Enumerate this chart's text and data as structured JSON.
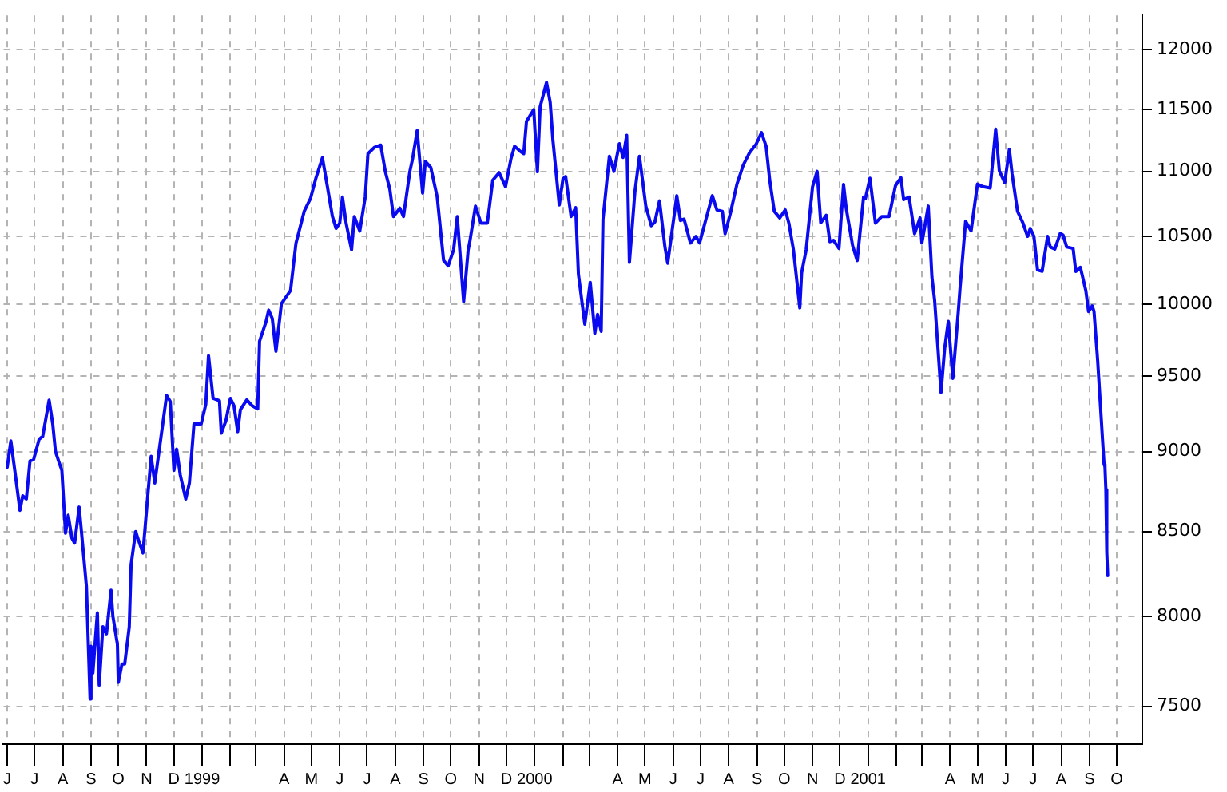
{
  "chart_data": {
    "type": "line",
    "log": true,
    "grid": true,
    "legend": false,
    "marker": "none",
    "line_style": "solid",
    "xlim": [
      "1998-05-28",
      "2001-10-29"
    ],
    "ylim": [
      7300,
      12300
    ],
    "yticks": [
      7500,
      8000,
      8500,
      9000,
      9500,
      10000,
      10500,
      11000,
      11500,
      12000
    ],
    "xticks": [
      {
        "value": "1998-06-01",
        "label": "J"
      },
      {
        "value": "1998-07-01",
        "label": "J"
      },
      {
        "value": "1998-08-01",
        "label": "A"
      },
      {
        "value": "1998-09-01",
        "label": "S"
      },
      {
        "value": "1998-10-01",
        "label": "O"
      },
      {
        "value": "1998-11-01",
        "label": "N"
      },
      {
        "value": "1998-12-01",
        "label": "D"
      },
      {
        "value": "1999-01-01",
        "label": "1999"
      },
      {
        "value": "1999-02-01",
        "label": null
      },
      {
        "value": "1999-03-01",
        "label": null
      },
      {
        "value": "1999-04-01",
        "label": "A"
      },
      {
        "value": "1999-05-01",
        "label": "M"
      },
      {
        "value": "1999-06-01",
        "label": "J"
      },
      {
        "value": "1999-07-01",
        "label": "J"
      },
      {
        "value": "1999-08-01",
        "label": "A"
      },
      {
        "value": "1999-09-01",
        "label": "S"
      },
      {
        "value": "1999-10-01",
        "label": "O"
      },
      {
        "value": "1999-11-01",
        "label": "N"
      },
      {
        "value": "1999-12-01",
        "label": "D"
      },
      {
        "value": "2000-01-01",
        "label": "2000"
      },
      {
        "value": "2000-02-01",
        "label": null
      },
      {
        "value": "2000-03-01",
        "label": null
      },
      {
        "value": "2000-04-01",
        "label": "A"
      },
      {
        "value": "2000-05-01",
        "label": "M"
      },
      {
        "value": "2000-06-01",
        "label": "J"
      },
      {
        "value": "2000-07-01",
        "label": "J"
      },
      {
        "value": "2000-08-01",
        "label": "A"
      },
      {
        "value": "2000-09-01",
        "label": "S"
      },
      {
        "value": "2000-10-01",
        "label": "O"
      },
      {
        "value": "2000-11-01",
        "label": "N"
      },
      {
        "value": "2000-12-01",
        "label": "D"
      },
      {
        "value": "2001-01-01",
        "label": "2001"
      },
      {
        "value": "2001-02-01",
        "label": null
      },
      {
        "value": "2001-03-01",
        "label": null
      },
      {
        "value": "2001-04-01",
        "label": "A"
      },
      {
        "value": "2001-05-01",
        "label": "M"
      },
      {
        "value": "2001-06-01",
        "label": "J"
      },
      {
        "value": "2001-07-01",
        "label": "J"
      },
      {
        "value": "2001-08-01",
        "label": "A"
      },
      {
        "value": "2001-09-01",
        "label": "S"
      },
      {
        "value": "2001-10-01",
        "label": "O"
      }
    ],
    "series": [
      {
        "color": "#0a0af0",
        "x": [
          "1998-06-01",
          "1998-06-05",
          "1998-06-10",
          "1998-06-15",
          "1998-06-18",
          "1998-06-22",
          "1998-06-26",
          "1998-06-30",
          "1998-07-06",
          "1998-07-10",
          "1998-07-17",
          "1998-07-21",
          "1998-07-24",
          "1998-07-28",
          "1998-07-31",
          "1998-08-04",
          "1998-08-07",
          "1998-08-11",
          "1998-08-14",
          "1998-08-19",
          "1998-08-21",
          "1998-08-27",
          "1998-08-31",
          "1998-09-01",
          "1998-09-03",
          "1998-09-08",
          "1998-09-10",
          "1998-09-14",
          "1998-09-18",
          "1998-09-23",
          "1998-09-25",
          "1998-09-30",
          "1998-10-01",
          "1998-10-05",
          "1998-10-08",
          "1998-10-13",
          "1998-10-15",
          "1998-10-20",
          "1998-10-23",
          "1998-10-28",
          "1998-11-02",
          "1998-11-06",
          "1998-11-10",
          "1998-11-13",
          "1998-11-23",
          "1998-11-27",
          "1998-12-01",
          "1998-12-04",
          "1998-12-08",
          "1998-12-14",
          "1998-12-18",
          "1998-12-23",
          "1998-12-31",
          "1999-01-05",
          "1999-01-08",
          "1999-01-13",
          "1999-01-20",
          "1999-01-22",
          "1999-01-27",
          "1999-02-01",
          "1999-02-05",
          "1999-02-09",
          "1999-02-12",
          "1999-02-19",
          "1999-02-25",
          "1999-03-03",
          "1999-03-05",
          "1999-03-12",
          "1999-03-15",
          "1999-03-19",
          "1999-03-23",
          "1999-03-29",
          "1999-04-08",
          "1999-04-14",
          "1999-04-23",
          "1999-04-30",
          "1999-05-06",
          "1999-05-13",
          "1999-05-18",
          "1999-05-24",
          "1999-05-28",
          "1999-06-01",
          "1999-06-04",
          "1999-06-08",
          "1999-06-14",
          "1999-06-17",
          "1999-06-23",
          "1999-06-29",
          "1999-07-02",
          "1999-07-09",
          "1999-07-16",
          "1999-07-21",
          "1999-07-26",
          "1999-07-30",
          "1999-08-06",
          "1999-08-10",
          "1999-08-17",
          "1999-08-20",
          "1999-08-25",
          "1999-08-31",
          "1999-09-03",
          "1999-09-09",
          "1999-09-16",
          "1999-09-23",
          "1999-09-28",
          "1999-10-04",
          "1999-10-08",
          "1999-10-15",
          "1999-10-20",
          "1999-10-22",
          "1999-10-28",
          "1999-11-03",
          "1999-11-10",
          "1999-11-16",
          "1999-11-23",
          "1999-11-30",
          "1999-12-06",
          "1999-12-10",
          "1999-12-16",
          "1999-12-20",
          "1999-12-23",
          "1999-12-31",
          "2000-01-04",
          "2000-01-07",
          "2000-01-14",
          "2000-01-18",
          "2000-01-21",
          "2000-01-28",
          "2000-02-01",
          "2000-02-04",
          "2000-02-10",
          "2000-02-15",
          "2000-02-18",
          "2000-02-25",
          "2000-03-02",
          "2000-03-07",
          "2000-03-10",
          "2000-03-14",
          "2000-03-16",
          "2000-03-23",
          "2000-03-28",
          "2000-04-03",
          "2000-04-07",
          "2000-04-11",
          "2000-04-14",
          "2000-04-20",
          "2000-04-25",
          "2000-05-02",
          "2000-05-08",
          "2000-05-12",
          "2000-05-17",
          "2000-05-23",
          "2000-05-26",
          "2000-06-05",
          "2000-06-09",
          "2000-06-13",
          "2000-06-20",
          "2000-06-26",
          "2000-06-30",
          "2000-07-07",
          "2000-07-14",
          "2000-07-19",
          "2000-07-25",
          "2000-07-28",
          "2000-08-03",
          "2000-08-10",
          "2000-08-17",
          "2000-08-24",
          "2000-08-31",
          "2000-09-06",
          "2000-09-11",
          "2000-09-15",
          "2000-09-20",
          "2000-09-26",
          "2000-10-02",
          "2000-10-06",
          "2000-10-11",
          "2000-10-18",
          "2000-10-20",
          "2000-10-25",
          "2000-11-01",
          "2000-11-06",
          "2000-11-10",
          "2000-11-16",
          "2000-11-20",
          "2000-11-24",
          "2000-11-30",
          "2000-12-05",
          "2000-12-08",
          "2000-12-15",
          "2000-12-20",
          "2000-12-27",
          "2000-12-29",
          "2001-01-03",
          "2001-01-09",
          "2001-01-16",
          "2001-01-24",
          "2001-01-31",
          "2001-02-06",
          "2001-02-09",
          "2001-02-15",
          "2001-02-21",
          "2001-02-27",
          "2001-03-01",
          "2001-03-08",
          "2001-03-12",
          "2001-03-15",
          "2001-03-22",
          "2001-03-26",
          "2001-03-30",
          "2001-04-04",
          "2001-04-10",
          "2001-04-12",
          "2001-04-18",
          "2001-04-24",
          "2001-05-01",
          "2001-05-07",
          "2001-05-15",
          "2001-05-21",
          "2001-05-25",
          "2001-05-31",
          "2001-06-05",
          "2001-06-08",
          "2001-06-14",
          "2001-06-20",
          "2001-06-25",
          "2001-06-28",
          "2001-07-02",
          "2001-07-06",
          "2001-07-11",
          "2001-07-17",
          "2001-07-20",
          "2001-07-25",
          "2001-07-31",
          "2001-08-03",
          "2001-08-07",
          "2001-08-14",
          "2001-08-17",
          "2001-08-22",
          "2001-08-28",
          "2001-08-31",
          "2001-09-04",
          "2001-09-06",
          "2001-09-10",
          "2001-09-17",
          "2001-09-18",
          "2001-09-19",
          "2001-09-20",
          "2001-09-21"
        ],
        "values": [
          8900,
          9070,
          8850,
          8630,
          8720,
          8700,
          8940,
          8950,
          9080,
          9100,
          9338,
          9180,
          9000,
          8930,
          8880,
          8490,
          8600,
          8460,
          8430,
          8650,
          8530,
          8170,
          7540,
          7830,
          7680,
          8020,
          7615,
          7940,
          7900,
          8150,
          8000,
          7840,
          7630,
          7730,
          7730,
          7940,
          8300,
          8500,
          8450,
          8370,
          8700,
          8970,
          8800,
          8930,
          9370,
          9330,
          8880,
          9016,
          8850,
          8700,
          8800,
          9180,
          9181,
          9310,
          9640,
          9350,
          9335,
          9120,
          9200,
          9350,
          9300,
          9130,
          9275,
          9340,
          9300,
          9280,
          9740,
          9875,
          9960,
          9900,
          9670,
          10006,
          10100,
          10450,
          10690,
          10790,
          10950,
          11107,
          10900,
          10650,
          10560,
          10600,
          10800,
          10600,
          10400,
          10650,
          10540,
          10800,
          11140,
          11190,
          11209,
          11000,
          10860,
          10650,
          10714,
          10650,
          11000,
          11100,
          11326,
          10830,
          11080,
          11030,
          10800,
          10320,
          10280,
          10400,
          10650,
          10020,
          10400,
          10470,
          10730,
          10600,
          10600,
          10930,
          10990,
          10880,
          11100,
          11200,
          11160,
          11140,
          11400,
          11497,
          10997,
          11520,
          11723,
          11560,
          11250,
          10738,
          10940,
          10960,
          10650,
          10718,
          10220,
          9860,
          10160,
          9796,
          9930,
          9810,
          10630,
          11120,
          11000,
          11220,
          11110,
          11287,
          10306,
          10840,
          11120,
          10730,
          10580,
          10610,
          10770,
          10420,
          10300,
          10810,
          10620,
          10630,
          10450,
          10500,
          10450,
          10630,
          10810,
          10700,
          10690,
          10520,
          10680,
          10900,
          11050,
          11150,
          11215,
          11310,
          11200,
          10930,
          10690,
          10640,
          10700,
          10600,
          10400,
          9975,
          10230,
          10400,
          10880,
          11000,
          10602,
          10660,
          10460,
          10470,
          10410,
          10898,
          10710,
          10430,
          10319,
          10800,
          10788,
          10946,
          10600,
          10650,
          10650,
          10888,
          10950,
          10780,
          10800,
          10520,
          10640,
          10450,
          10730,
          10200,
          10030,
          9390,
          9690,
          9880,
          9485,
          9950,
          10125,
          10615,
          10540,
          10900,
          10880,
          10870,
          11337,
          11005,
          10911,
          11175,
          10980,
          10690,
          10600,
          10500,
          10560,
          10500,
          10250,
          10240,
          10500,
          10420,
          10405,
          10523,
          10510,
          10420,
          10410,
          10240,
          10270,
          10100,
          9950,
          9990,
          9950,
          9605,
          8920,
          8903,
          8759,
          8376,
          8236
        ]
      }
    ]
  }
}
